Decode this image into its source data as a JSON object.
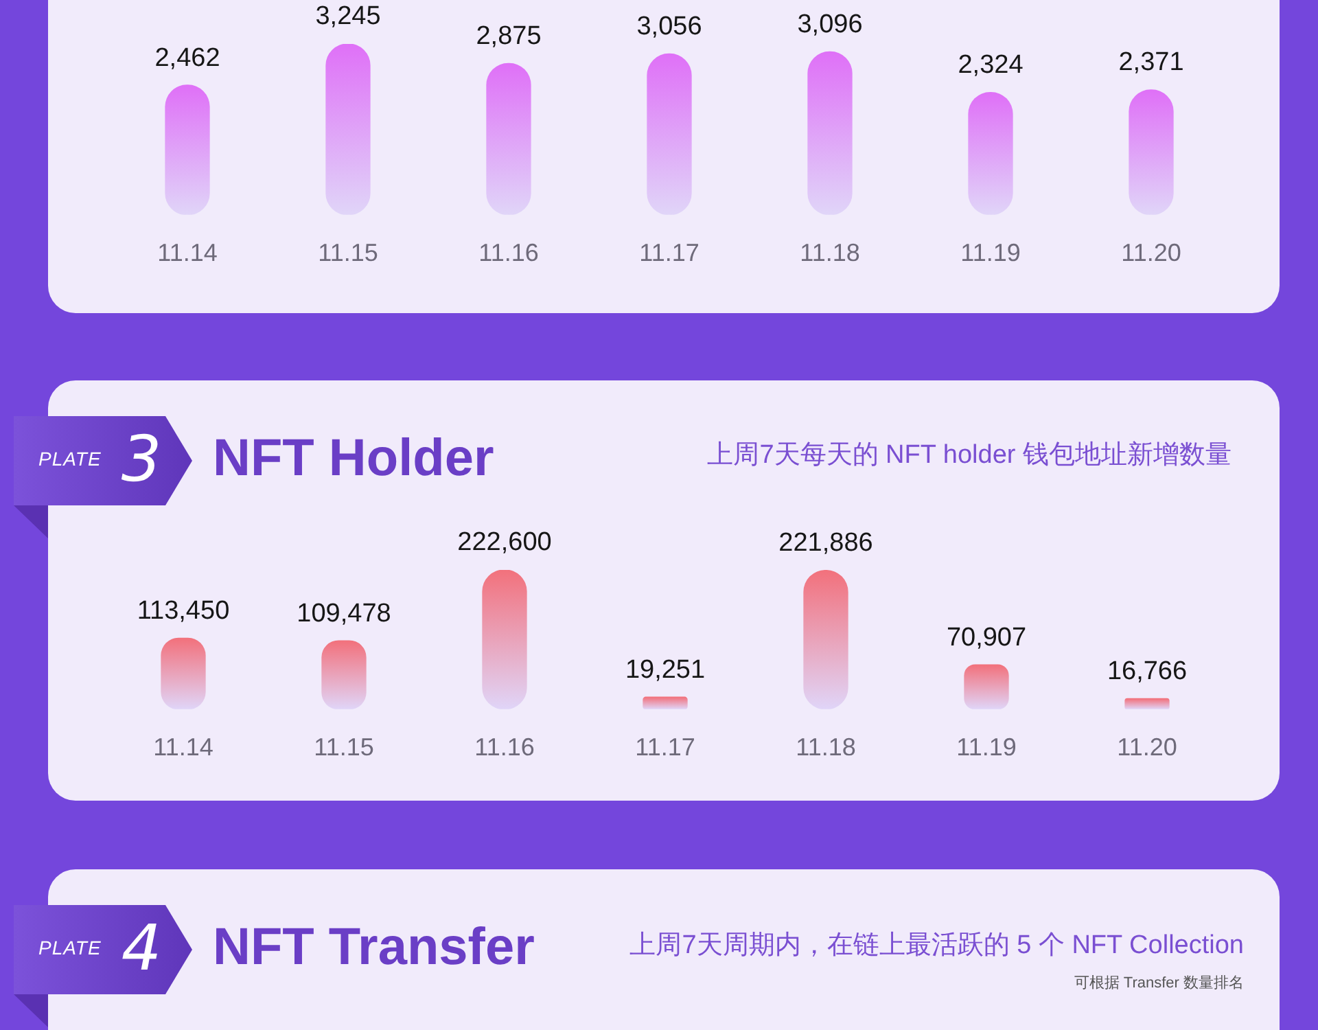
{
  "chart_data": [
    {
      "type": "bar",
      "categories": [
        "11.14",
        "11.15",
        "11.16",
        "11.17",
        "11.18",
        "11.19",
        "11.20"
      ],
      "values": [
        2462,
        3245,
        2875,
        3056,
        3096,
        2324,
        2371
      ],
      "value_labels": [
        "2,462",
        "3,245",
        "2,875",
        "3,056",
        "3,096",
        "2,324",
        "2,371"
      ],
      "color": "#df70f7"
    },
    {
      "type": "bar",
      "title": "NFT Holder",
      "subtitle": "上周7天每天的 NFT holder 钱包地址新增数量",
      "annotations": [
        "PLATE 3"
      ],
      "categories": [
        "11.14",
        "11.15",
        "11.16",
        "11.17",
        "11.18",
        "11.19",
        "11.20"
      ],
      "values": [
        113450,
        109478,
        222600,
        19251,
        221886,
        70907,
        16766
      ],
      "value_labels": [
        "113,450",
        "109,478",
        "222,600",
        "19,251",
        "221,886",
        "70,907",
        "16,766"
      ],
      "color": "#f2717c"
    },
    {
      "type": "other",
      "title": "NFT Transfer",
      "subtitle": "上周7天周期内，在链上最活跃的 5 个 NFT Collection",
      "annotations": [
        "PLATE 4",
        "可根据 Transfer 数量排名"
      ]
    }
  ]
}
